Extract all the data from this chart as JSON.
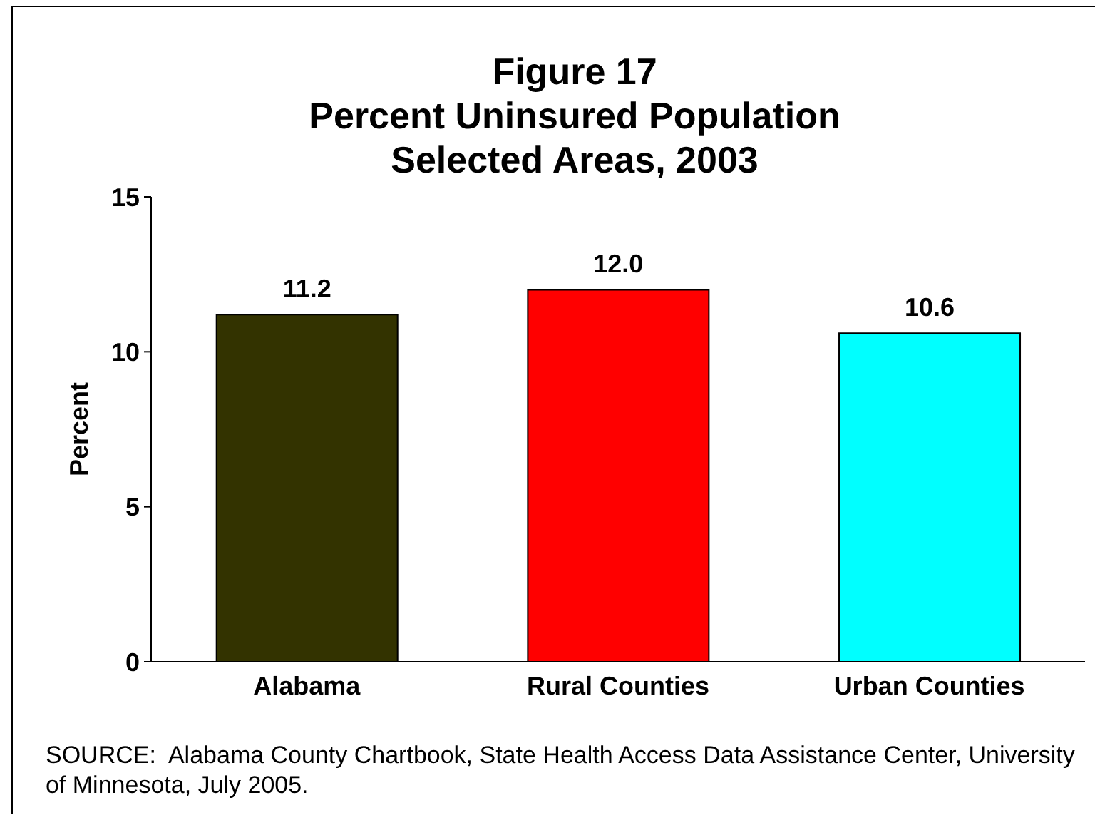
{
  "chart_data": {
    "type": "bar",
    "title": "Figure 17\nPercent Uninsured Population\nSelected Areas, 2003",
    "ylabel": "Percent",
    "categories": [
      "Alabama",
      "Rural Counties",
      "Urban Counties"
    ],
    "values": [
      11.2,
      12.0,
      10.6
    ],
    "value_labels": [
      "11.2",
      "12.0",
      "10.6"
    ],
    "colors": [
      "#333300",
      "#ff0000",
      "#00ffff"
    ],
    "ylim": [
      0,
      15
    ],
    "yticks": [
      0,
      5,
      10,
      15
    ],
    "annotations": [
      "SOURCE:  Alabama County Chartbook, State Health Access Data Assistance Center, University of Minnesota, July 2005."
    ]
  }
}
